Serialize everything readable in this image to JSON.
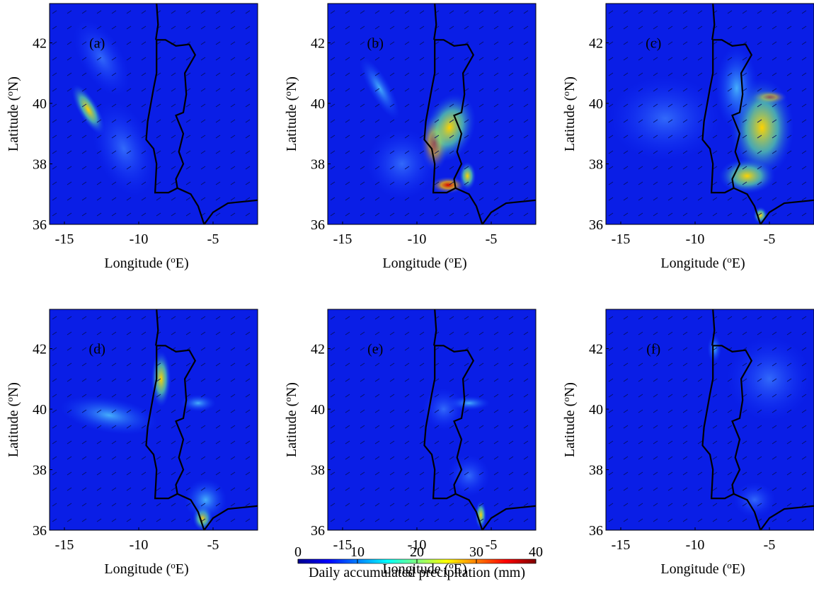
{
  "panels": [
    {
      "label": "(a)",
      "xlim": [
        -16,
        -2
      ],
      "ylim": [
        36,
        43.3
      ],
      "xticks": [
        -15,
        -10,
        -5
      ],
      "yticks": [
        36,
        38,
        40,
        42
      ],
      "xlabel": {
        "text": "Longitude (",
        "sup": "o",
        "after": "E)"
      },
      "ylabel": {
        "text": "Latitude (",
        "sup": "o",
        "after": "N)"
      }
    },
    {
      "label": "(b)",
      "xlim": [
        -16,
        -2
      ],
      "ylim": [
        36,
        43.3
      ],
      "xticks": [
        -15,
        -10,
        -5
      ],
      "yticks": [
        36,
        38,
        40,
        42
      ],
      "xlabel": {
        "text": "Longitude (",
        "sup": "o",
        "after": "E)"
      },
      "ylabel": {
        "text": "Latitude (",
        "sup": "o",
        "after": "N)"
      }
    },
    {
      "label": "(c)",
      "xlim": [
        -16,
        -2
      ],
      "ylim": [
        36,
        43.3
      ],
      "xticks": [
        -15,
        -10,
        -5
      ],
      "yticks": [
        36,
        38,
        40,
        42
      ],
      "xlabel": {
        "text": "Longitude (",
        "sup": "o",
        "after": "E)"
      },
      "ylabel": {
        "text": "Latitude (",
        "sup": "o",
        "after": "N)"
      }
    },
    {
      "label": "(d)",
      "xlim": [
        -16,
        -2
      ],
      "ylim": [
        36,
        43.3
      ],
      "xticks": [
        -15,
        -10,
        -5
      ],
      "yticks": [
        36,
        38,
        40,
        42
      ],
      "xlabel": {
        "text": "Longitude (",
        "sup": "o",
        "after": "E)"
      },
      "ylabel": {
        "text": "Latitude (",
        "sup": "o",
        "after": "N)"
      }
    },
    {
      "label": "(e)",
      "xlim": [
        -16,
        -2
      ],
      "ylim": [
        36,
        43.3
      ],
      "xticks": [
        -15,
        -10,
        -5
      ],
      "yticks": [
        36,
        38,
        40,
        42
      ],
      "xlabel": {
        "text": "Longitude (",
        "sup": "o",
        "after": "E)"
      },
      "ylabel": {
        "text": "Latitude (",
        "sup": "o",
        "after": "N)"
      }
    },
    {
      "label": "(f)",
      "xlim": [
        -16,
        -2
      ],
      "ylim": [
        36,
        43.3
      ],
      "xticks": [
        -15,
        -10,
        -5
      ],
      "yticks": [
        36,
        38,
        40,
        42
      ],
      "xlabel": {
        "text": "Longitude (",
        "sup": "o",
        "after": "E)"
      },
      "ylabel": {
        "text": "Latitude (",
        "sup": "o",
        "after": "N)"
      }
    }
  ],
  "colorbar": {
    "lim": [
      0,
      40
    ],
    "ticks": [
      0,
      10,
      20,
      30,
      40
    ],
    "label": "Daily accumulated precipitation (mm)"
  }
}
